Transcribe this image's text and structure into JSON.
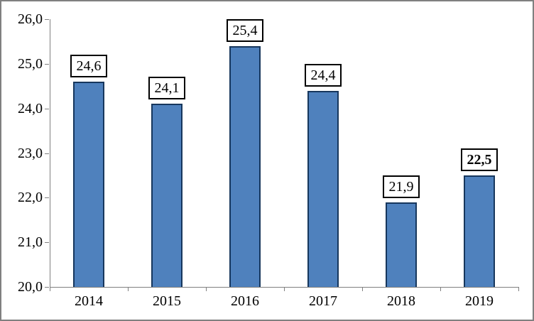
{
  "chart_data": {
    "type": "bar",
    "title": "",
    "xlabel": "",
    "ylabel": "",
    "categories": [
      "2014",
      "2015",
      "2016",
      "2017",
      "2018",
      "2019"
    ],
    "values": [
      24.6,
      24.1,
      25.4,
      24.4,
      21.9,
      22.5
    ],
    "value_labels": [
      "24,6",
      "24,1",
      "25,4",
      "24,4",
      "21,9",
      "22,5"
    ],
    "value_label_bold": [
      false,
      false,
      false,
      false,
      false,
      true
    ],
    "ylim": [
      20.0,
      26.0
    ],
    "ytick_step": 1.0,
    "ytick_labels": [
      "20,0",
      "21,0",
      "22,0",
      "23,0",
      "24,0",
      "25,0",
      "26,0"
    ],
    "decimal_separator": ",",
    "grid": false,
    "legend_position": "none",
    "data_labels": "boxed-above-bars",
    "colors": {
      "bar_fill": "#4F81BD",
      "bar_border": "#17375D",
      "axis_line": "#808080",
      "tick_mark": "#808080",
      "text": "#000000",
      "label_box_border": "#000000",
      "label_box_fill": "#FFFFFF",
      "frame_border": "#808080",
      "background": "#FFFFFF"
    }
  }
}
